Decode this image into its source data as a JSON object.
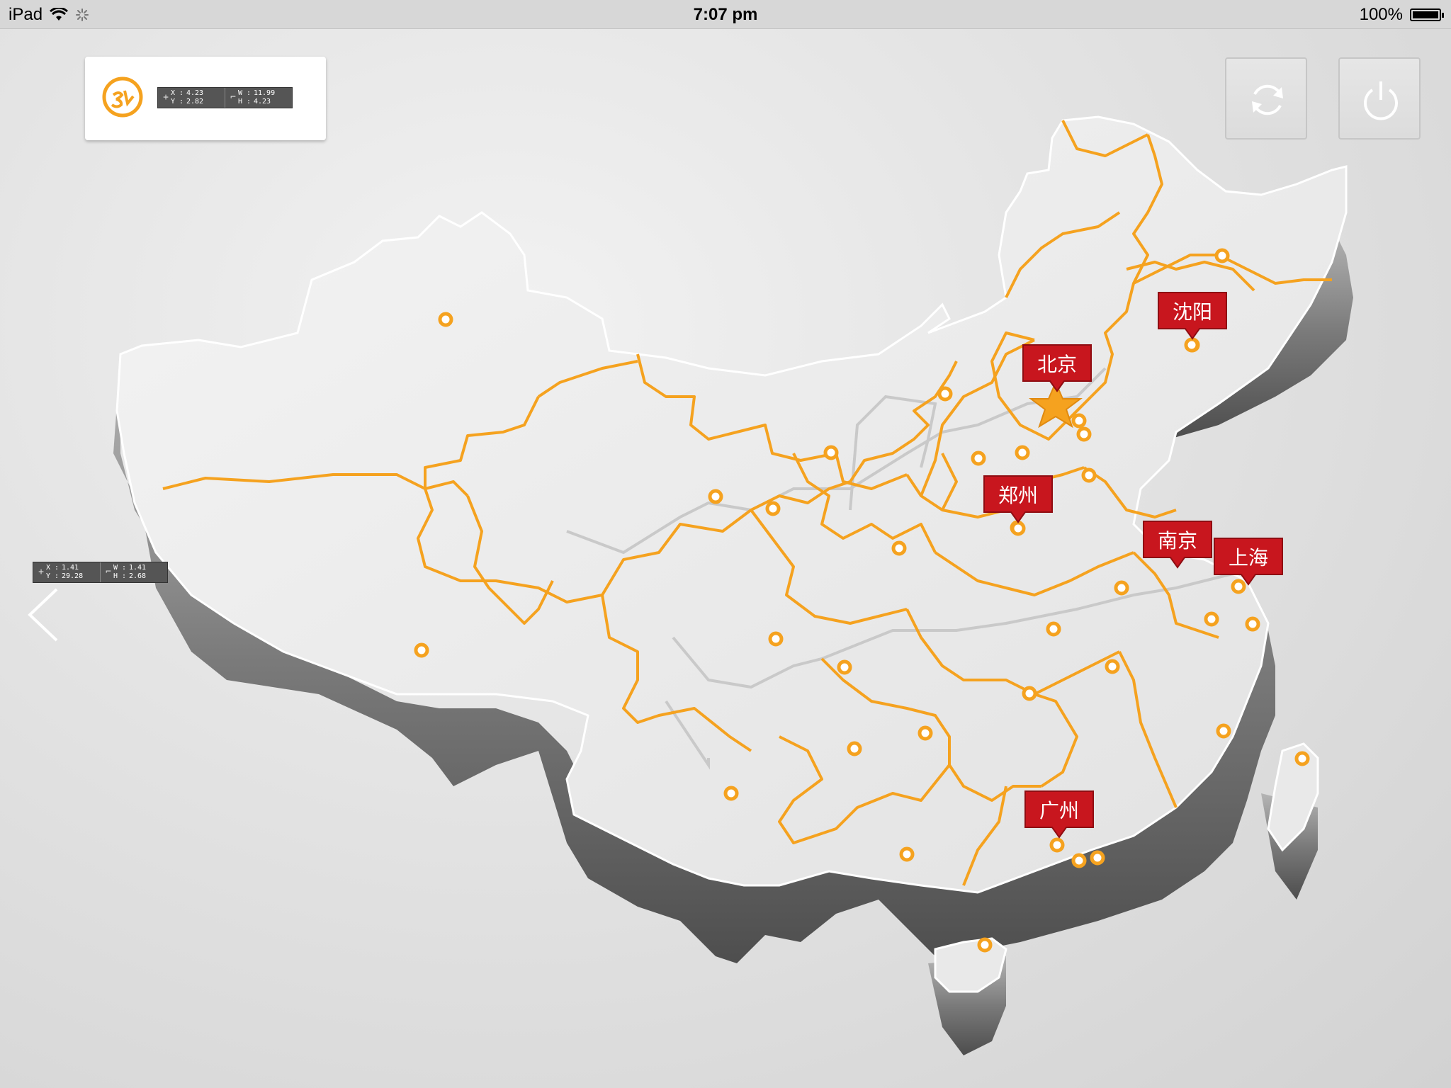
{
  "status_bar": {
    "device": "iPad",
    "time": "7:07 pm",
    "battery": "100%"
  },
  "toolbar": {
    "refresh_icon": "refresh-icon",
    "power_icon": "power-icon",
    "back_icon": "chevron-left-icon",
    "logo_icon": "logo-icon"
  },
  "measure_top": {
    "x_label": "X :",
    "x": "4.23",
    "y_label": "Y :",
    "y": "2.82",
    "w_label": "W :",
    "w": "11.99",
    "h_label": "H :",
    "h": "4.23"
  },
  "measure_left": {
    "x_label": "X :",
    "x": "1.41",
    "y_label": "Y :",
    "y": "29.28",
    "w_label": "W :",
    "w": "1.41",
    "h_label": "H :",
    "h": "2.68"
  },
  "cities": {
    "shenyang": "沈阳",
    "beijing": "北京",
    "zhengzhou": "郑州",
    "nanjing": "南京",
    "shanghai": "上海",
    "guangzhou": "广州"
  },
  "colors": {
    "border_line": "#f5a21f",
    "marker": "#f5a21f",
    "tag_red": "#c8161e",
    "map_top": "#ededed",
    "map_side": "#8a8a8a"
  }
}
